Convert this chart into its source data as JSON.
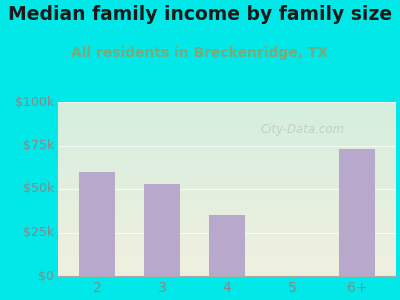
{
  "title": "Median family income by family size",
  "subtitle": "All residents in Breckenridge, TX",
  "categories": [
    "2",
    "3",
    "4",
    "5",
    "6+"
  ],
  "values": [
    60000,
    53000,
    35000,
    0,
    73000
  ],
  "bar_color": "#b8a8cc",
  "title_fontsize": 13.5,
  "subtitle_fontsize": 10,
  "subtitle_color": "#7aaa7a",
  "title_color": "#1a1a1a",
  "bg_outer": "#00e8e8",
  "bg_inner_top": "#d5eedd",
  "bg_inner_bottom": "#f0f0e0",
  "ylim": [
    0,
    100000
  ],
  "yticks": [
    0,
    25000,
    50000,
    75000,
    100000
  ],
  "ytick_labels": [
    "$0",
    "$25k",
    "$50k",
    "$75k",
    "$100k"
  ],
  "tick_color": "#888888",
  "watermark": "City-Data.com",
  "watermark_color": "#c0c8c0",
  "grid_color": "#e8e8d8"
}
